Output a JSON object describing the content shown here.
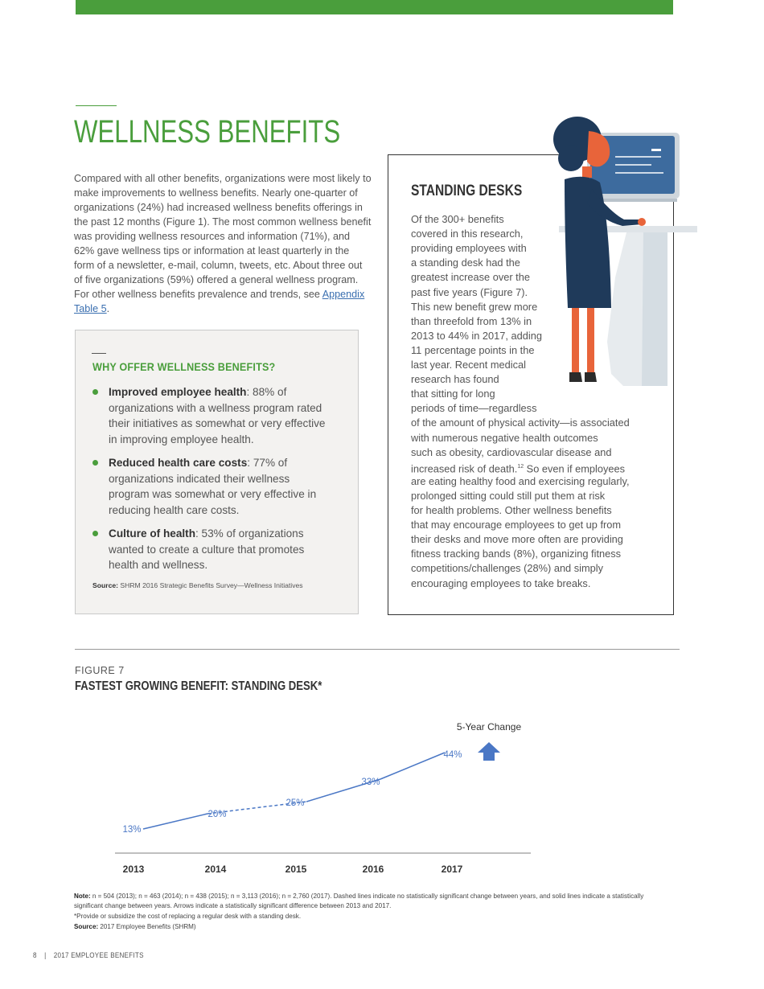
{
  "page": {
    "title": "WELLNESS BENEFITS",
    "intro_text": "Compared with all other benefits, organizations were most likely to make improvements to wellness benefits. Nearly one-quarter of organizations (24%) had increased wellness benefits offerings in the past 12 months (Figure 1). The most common wellness benefit was providing wellness resources and information (71%), and 62% gave wellness tips or information at least quarterly in the form of a newsletter, e-mail, column, tweets, etc. About three out of five organizations (59%) offered a general wellness program. For other wellness benefits prevalence and trends, see",
    "intro_link": "Appendix Table 5",
    "intro_end": "."
  },
  "why_box": {
    "title": "WHY OFFER WELLNESS BENEFITS?",
    "items": [
      {
        "bold": "Improved employee health",
        "text": ": 88% of organizations with a wellness program rated their initiatives as somewhat or very effective in improving employee health."
      },
      {
        "bold": "Reduced health care costs",
        "text": ": 77% of organizations indicated their wellness program was somewhat or very effective in reducing health care costs."
      },
      {
        "bold": "Culture of health",
        "text": ": 53% of organizations wanted to create a culture that promotes health and wellness."
      }
    ],
    "source_label": "Source:",
    "source_text": " SHRM 2016 Strategic Benefits Survey—Wellness Initiatives"
  },
  "standing_desks": {
    "title": "STANDING DESKS",
    "lines": [
      "Of the 300+ benefits",
      "covered in this research,",
      "providing employees with",
      "a standing desk had the",
      "greatest increase over the",
      "past five years (Figure 7).",
      "This new benefit grew more",
      "than threefold from 13% in",
      "2013 to 44% in 2017, adding",
      "11 percentage points in the",
      "last year. Recent medical",
      "research has found",
      "that sitting for long",
      "periods of time—regardless",
      "of the amount of physical activity—is associated",
      "with numerous negative health outcomes",
      "such as obesity, cardiovascular disease and",
      "increased risk of death.",
      "are eating healthy food and exercising regularly,",
      "prolonged sitting could still put them at risk",
      "for health problems. Other wellness benefits",
      "that may encourage employees to get up from",
      "their desks and move more often are providing",
      "fitness tracking bands (8%), organizing fitness",
      "competitions/challenges (28%) and simply",
      "encouraging employees to take breaks."
    ],
    "footnote_ref": "12",
    "line18_tail": " So even if employees"
  },
  "figure": {
    "label": "FIGURE 7",
    "title": "FASTEST GROWING BENEFIT: STANDING DESK*",
    "change_label": "5-Year Change"
  },
  "chart_data": {
    "type": "line",
    "title": "FASTEST GROWING BENEFIT: STANDING DESK*",
    "x": [
      "2013",
      "2014",
      "2015",
      "2016",
      "2017"
    ],
    "series": [
      {
        "values": [
          13,
          20,
          25,
          33,
          44
        ],
        "labels": [
          "13%",
          "20%",
          "25%",
          "33%",
          "44%"
        ],
        "segment_styles": [
          "solid",
          "dashed",
          "solid",
          "solid"
        ]
      }
    ],
    "five_year_change": "increase",
    "colors": {
      "line": "#4a77c5",
      "arrow": "#4a77c5"
    }
  },
  "notes": {
    "note_label": "Note:",
    "note_text": " n = 504 (2013); n = 463 (2014); n = 438 (2015); n = 3,113 (2016); n = 2,760 (2017). Dashed lines indicate no statistically significant change between years, and solid lines indicate a statistically significant change between years. Arrows indicate a statistically significant difference between 2013 and 2017.",
    "asterisk_text": "*Provide or subsidize the cost of replacing a regular desk with a standing desk.",
    "source_label": "Source:",
    "source_text": " 2017 Employee Benefits (SHRM)"
  },
  "footer": {
    "page_number": "8",
    "separator": "|",
    "publication": "2017 EMPLOYEE BENEFITS"
  }
}
